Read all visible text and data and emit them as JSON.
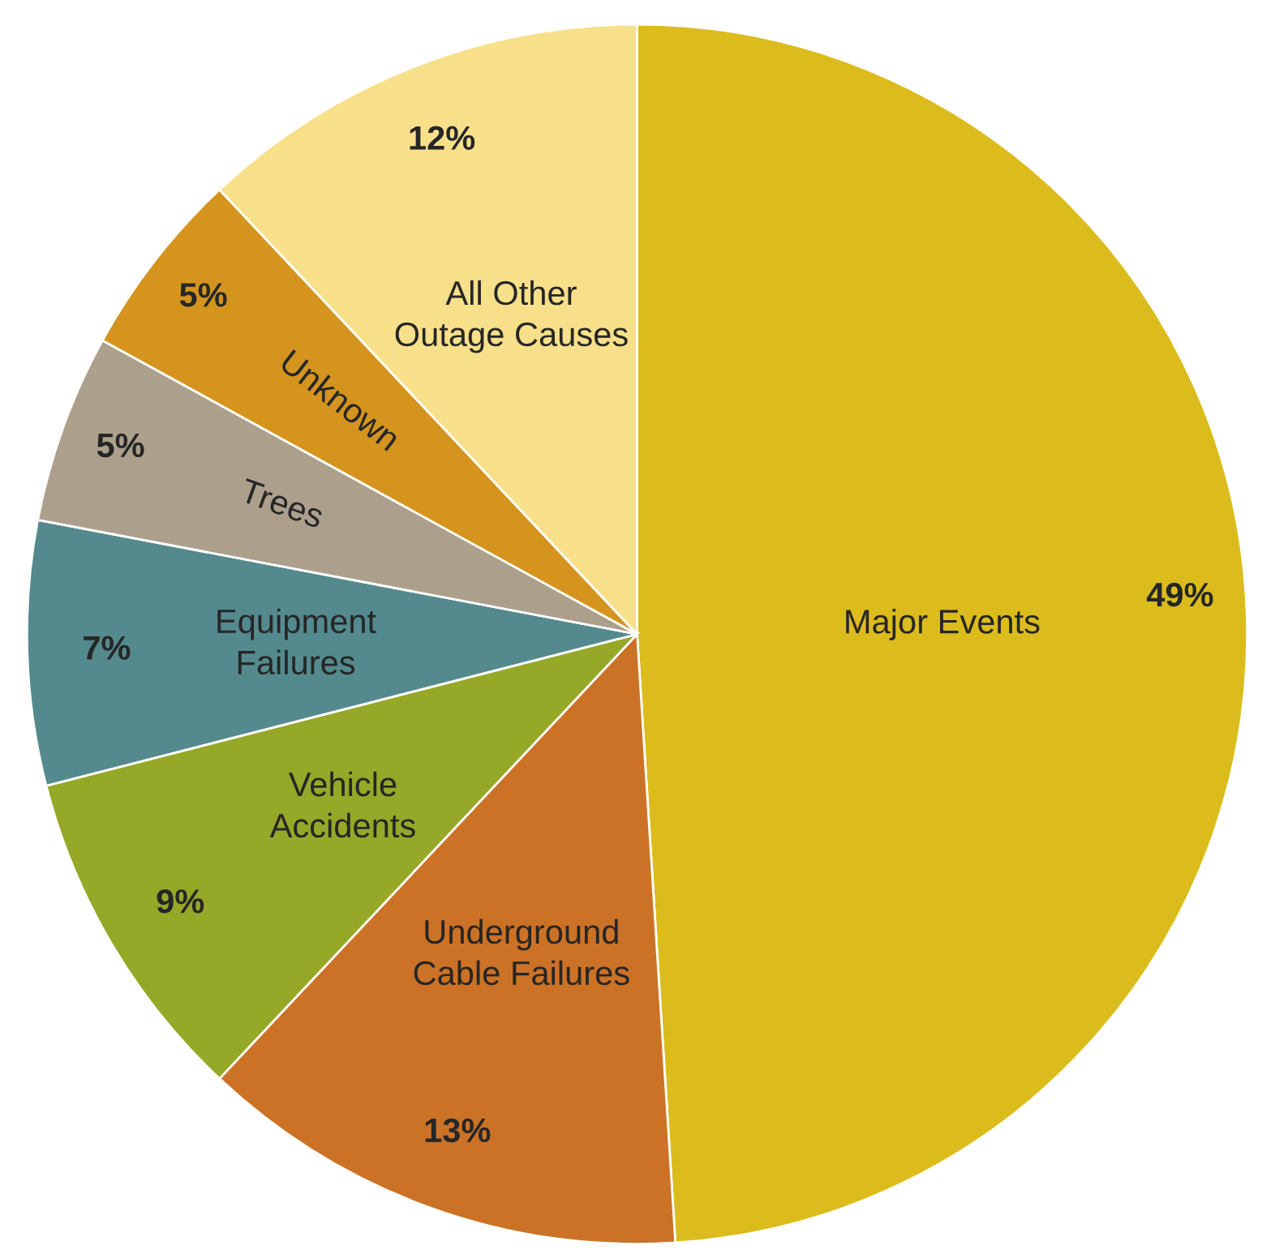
{
  "chart_data": {
    "type": "pie",
    "categories": [
      "Major Events",
      "Underground\nCable Failures",
      "Vehicle\nAccidents",
      "Equipment\nFailures",
      "Trees",
      "Unknown",
      "All Other\nOutage Causes"
    ],
    "values": [
      49,
      13,
      9,
      7,
      5,
      5,
      12
    ],
    "colors": [
      "#dcbc1c",
      "#cc7226",
      "#95a828",
      "#548a8e",
      "#aca08c",
      "#d4941e",
      "#f8e08a"
    ],
    "value_labels": [
      "49%",
      "13%",
      "9%",
      "7%",
      "5%",
      "5%",
      "12%"
    ]
  }
}
